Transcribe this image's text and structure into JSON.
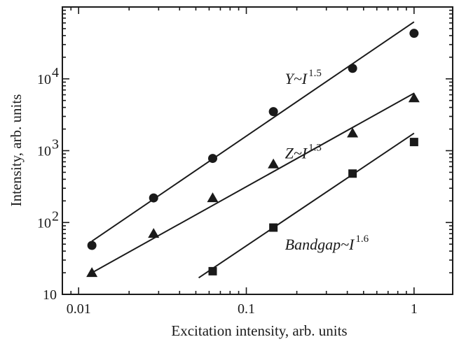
{
  "chart_data": {
    "type": "scatter",
    "xscale": "log",
    "yscale": "log",
    "xlim": [
      0.008,
      1.7
    ],
    "ylim": [
      10,
      100000
    ],
    "xlabel": "Excitation intensity, arb. units",
    "ylabel": "Intensity, arb. units",
    "x_ticks": [
      {
        "value": 0.01,
        "label": "0.01"
      },
      {
        "value": 0.1,
        "label": "0.1"
      },
      {
        "value": 1,
        "label": "1"
      }
    ],
    "y_ticks": [
      {
        "value": 10,
        "label": "10"
      },
      {
        "value": 100,
        "label": "10",
        "exp": "2"
      },
      {
        "value": 1000,
        "label": "10",
        "exp": "3"
      },
      {
        "value": 10000,
        "label": "10",
        "exp": "4"
      }
    ],
    "series": [
      {
        "marker": "circle",
        "points": [
          [
            0.012,
            48
          ],
          [
            0.028,
            220
          ],
          [
            0.063,
            780
          ],
          [
            0.145,
            3500
          ],
          [
            0.43,
            14000
          ],
          [
            1.0,
            43000
          ]
        ],
        "fit": [
          [
            0.012,
            55
          ],
          [
            1.0,
            62000
          ]
        ],
        "annotation": {
          "base": "Y~I",
          "exp": "1.5",
          "at": [
            0.17,
            8500
          ]
        }
      },
      {
        "marker": "triangle",
        "points": [
          [
            0.012,
            20
          ],
          [
            0.028,
            70
          ],
          [
            0.063,
            220
          ],
          [
            0.145,
            650
          ],
          [
            0.43,
            1750
          ],
          [
            1.0,
            5400
          ]
        ],
        "fit": [
          [
            0.012,
            20
          ],
          [
            1.0,
            6300
          ]
        ],
        "annotation": {
          "base": "Z~I",
          "exp": "1.3",
          "at": [
            0.17,
            780
          ]
        }
      },
      {
        "marker": "square",
        "points": [
          [
            0.063,
            21
          ],
          [
            0.145,
            85
          ],
          [
            0.43,
            480
          ],
          [
            1.0,
            1320
          ]
        ],
        "fit": [
          [
            0.052,
            17
          ],
          [
            1.0,
            1750
          ]
        ],
        "annotation": {
          "base": "Bandgap~I",
          "exp": "1.6",
          "at": [
            0.17,
            42
          ]
        }
      }
    ]
  }
}
